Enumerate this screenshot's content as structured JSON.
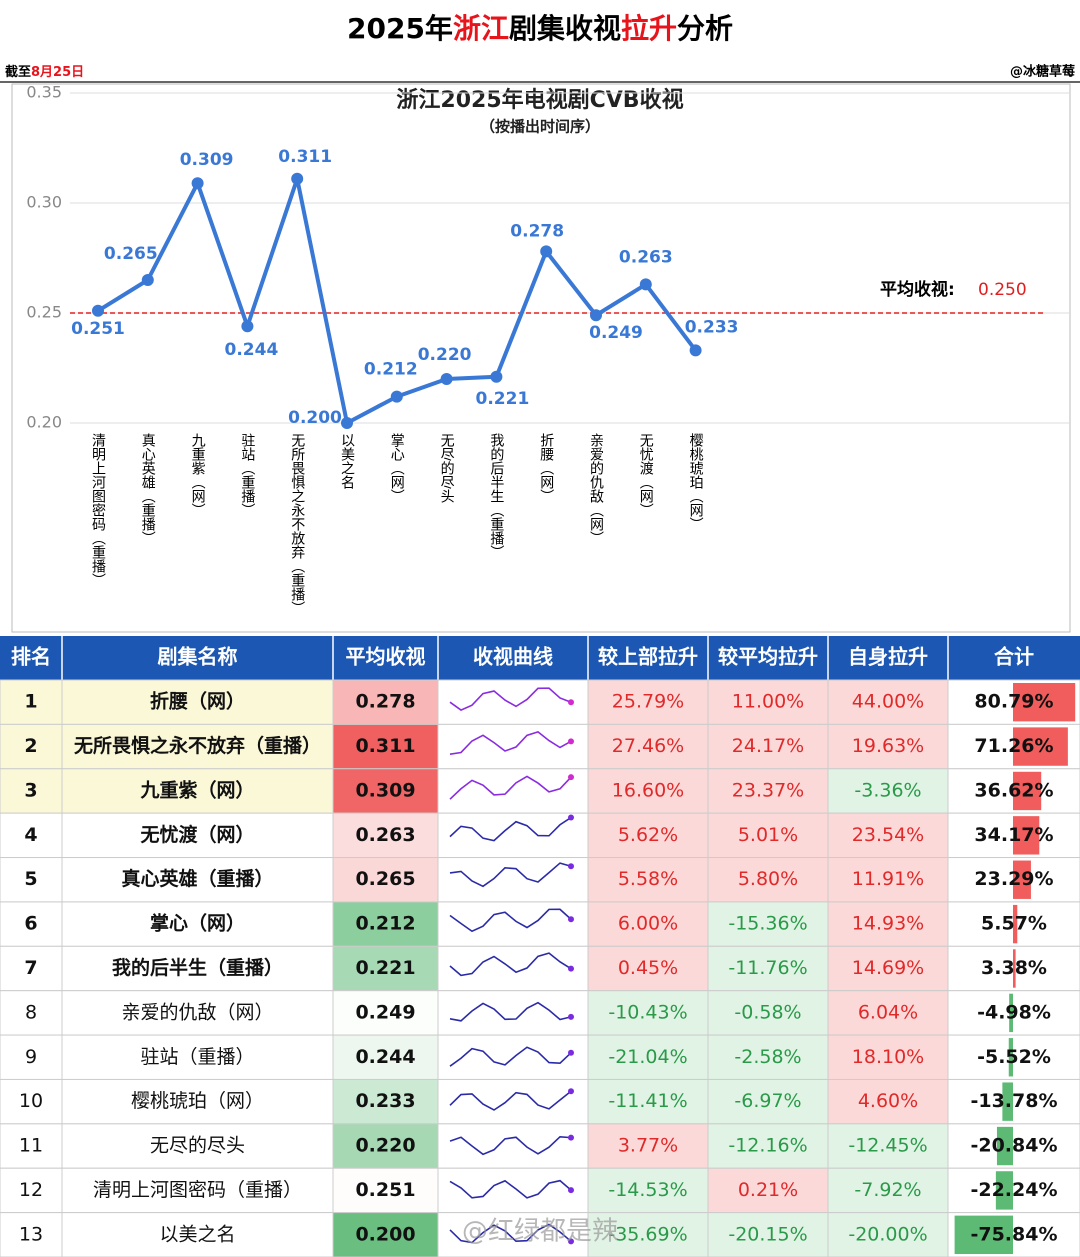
{
  "header": {
    "title_parts": [
      "2025年",
      "浙江",
      "剧集收视",
      "拉升",
      "分析"
    ],
    "title_highlight": [
      1,
      3
    ],
    "date_parts": [
      "截至",
      "8月25日"
    ],
    "author": "@冰糖草莓",
    "highlight_color": "#e8141b"
  },
  "chart_data": {
    "type": "line",
    "title": "浙江2025年电视剧CVB收视",
    "subtitle": "（按播出时间序）",
    "categories": [
      "清明上河图密码（重播）",
      "真心英雄（重播）",
      "九重紫（网）",
      "驻站（重播）",
      "无所畏惧之永不放弃（重播）",
      "以美之名",
      "掌心（网）",
      "无尽的尽头",
      "我的后半生（重播）",
      "折腰（网）",
      "亲爱的仇敌（网）",
      "无忧渡（网）",
      "樱桃琥珀（网）"
    ],
    "values": [
      0.251,
      0.265,
      0.309,
      0.244,
      0.311,
      0.2,
      0.212,
      0.22,
      0.221,
      0.278,
      0.249,
      0.263,
      0.233
    ],
    "value_labels": [
      "0.251",
      "0.265",
      "0.309",
      "0.244",
      "0.311",
      "0.200",
      "0.212",
      "0.220",
      "0.221",
      "0.278",
      "0.249",
      "0.263",
      "0.233"
    ],
    "color": "#3a78d6",
    "ylim": [
      0.2,
      0.35
    ],
    "yticks": [
      {
        "value": 0.2,
        "label": "0.20"
      },
      {
        "value": 0.25,
        "label": "0.25"
      },
      {
        "value": 0.3,
        "label": "0.30"
      },
      {
        "value": 0.35,
        "label": "0.35"
      }
    ],
    "grid": true,
    "reference_line": {
      "label": "平均收视:",
      "value": 0.25,
      "value_label": "0.250",
      "color": "#e02020"
    }
  },
  "table": {
    "headers": [
      "排名",
      "剧集名称",
      "平均收视",
      "收视曲线",
      "较上部拉升",
      "较平均拉升",
      "自身拉升",
      "合计"
    ],
    "rows": [
      [
        "1",
        "折腰（网）",
        "0.278",
        "",
        "25.79%",
        "11.00%",
        "44.00%",
        "80.79%"
      ],
      [
        "2",
        "无所畏惧之永不放弃（重播）",
        "0.311",
        "",
        "27.46%",
        "24.17%",
        "19.63%",
        "71.26%"
      ],
      [
        "3",
        "九重紫（网）",
        "0.309",
        "",
        "16.60%",
        "23.37%",
        "-3.36%",
        "36.62%"
      ],
      [
        "4",
        "无忧渡（网）",
        "0.263",
        "",
        "5.62%",
        "5.01%",
        "23.54%",
        "34.17%"
      ],
      [
        "5",
        "真心英雄（重播）",
        "0.265",
        "",
        "5.58%",
        "5.80%",
        "11.91%",
        "23.29%"
      ],
      [
        "6",
        "掌心（网）",
        "0.212",
        "",
        "6.00%",
        "-15.36%",
        "14.93%",
        "5.57%"
      ],
      [
        "7",
        "我的后半生（重播）",
        "0.221",
        "",
        "0.45%",
        "-11.76%",
        "14.69%",
        "3.38%"
      ],
      [
        "8",
        "亲爱的仇敌（网）",
        "0.249",
        "",
        "-10.43%",
        "-0.58%",
        "6.04%",
        "-4.98%"
      ],
      [
        "9",
        "驻站（重播）",
        "0.244",
        "",
        "-21.04%",
        "-2.58%",
        "18.10%",
        "-5.52%"
      ],
      [
        "10",
        "樱桃琥珀（网）",
        "0.233",
        "",
        "-11.41%",
        "-6.97%",
        "4.60%",
        "-13.78%"
      ],
      [
        "11",
        "无尽的尽头",
        "0.220",
        "",
        "3.77%",
        "-12.16%",
        "-12.45%",
        "-20.84%"
      ],
      [
        "12",
        "清明上河图密码（重播）",
        "0.251",
        "",
        "-14.53%",
        "0.21%",
        "-7.92%",
        "-22.24%"
      ],
      [
        "13",
        "以美之名",
        "0.200",
        "",
        "-35.69%",
        "-20.15%",
        "-20.00%",
        "-75.84%"
      ]
    ],
    "highlight_rows": 3,
    "bold_rows": 7,
    "header_color": "#1b57b3"
  },
  "watermark": "@红绿都是辣"
}
